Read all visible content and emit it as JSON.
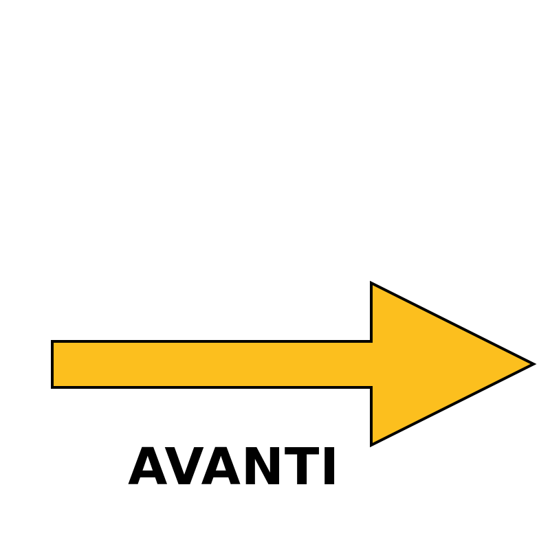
{
  "sign": {
    "label": "AVANTI",
    "icon": "right-arrow-icon",
    "direction": "right",
    "colors": {
      "fill": "#FCBF1E",
      "stroke": "#000000",
      "text": "#000000",
      "background": "#FFFFFF"
    }
  }
}
